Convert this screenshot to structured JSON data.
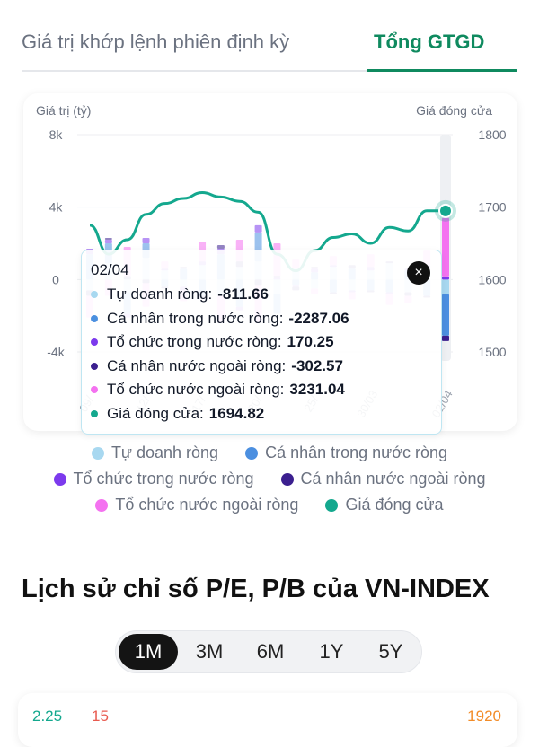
{
  "tabs": {
    "tab1": "Giá trị khớp lệnh phiên định kỳ",
    "tab2": "Tổng GTGD"
  },
  "colors": {
    "tu_doanh": "#a8d8f0",
    "ca_nhan_trong_nuoc": "#4b8fe0",
    "to_chuc_trong_nuoc": "#7c3aed",
    "ca_nhan_nuoc_ngoai": "#3b1f8f",
    "to_chuc_nuoc_ngoai": "#f472f0",
    "gia_dong_cua": "#14a88e"
  },
  "chart_data": {
    "type": "bar",
    "y_left_label": "Giá trị (tỷ)",
    "y_right_label": "Giá đóng cửa",
    "y_left_ticks": [
      "8k",
      "4k",
      "0",
      "-4k"
    ],
    "y_right_ticks": [
      "1800",
      "1700",
      "1600",
      "1500"
    ],
    "ylim_left": [
      -4000,
      8000
    ],
    "ylim_right": [
      1500,
      1800
    ],
    "x_tick_labels": [
      "09/",
      "12/",
      "17/",
      "20/",
      "25/",
      "30/03",
      "02/04"
    ],
    "x_tick_index": [
      0,
      3,
      6,
      9,
      12,
      15,
      19
    ],
    "n_points": 20,
    "series": [
      {
        "name": "Tự doanh ròng",
        "key": "tu_doanh",
        "values": [
          -600,
          900,
          -700,
          1200,
          500,
          -400,
          800,
          -900,
          700,
          1000,
          -800,
          600,
          -500,
          700,
          -600,
          500,
          900,
          -700,
          600,
          -811.66
        ]
      },
      {
        "name": "Cá nhân trong nước ròng",
        "key": "ca_nhan_trong_nuoc",
        "values": [
          1400,
          1100,
          -1200,
          800,
          -400,
          600,
          -900,
          1400,
          -1500,
          1600,
          -1100,
          -300,
          400,
          -700,
          600,
          -600,
          -700,
          500,
          -900,
          -2287.06
        ]
      },
      {
        "name": "Tổ chức trong nước ròng",
        "key": "to_chuc_trong_nuoc",
        "values": [
          300,
          200,
          -200,
          300,
          100,
          -200,
          200,
          300,
          -200,
          400,
          100,
          -100,
          200,
          100,
          -100,
          200,
          -100,
          100,
          200,
          170.25
        ]
      },
      {
        "name": "Cá nhân nước ngoài ròng",
        "key": "ca_nhan_nuoc_ngoai",
        "values": [
          -300,
          100,
          200,
          -200,
          -100,
          100,
          -200,
          200,
          300,
          -300,
          100,
          -200,
          100,
          -100,
          200,
          -100,
          100,
          -200,
          -100,
          -302.57
        ]
      },
      {
        "name": "Tổ chức nước ngoài ròng",
        "key": "to_chuc_nuoc_ngoai",
        "values": [
          -1200,
          -900,
          1600,
          -1300,
          400,
          -600,
          1100,
          -1500,
          1200,
          -2100,
          1800,
          500,
          -300,
          500,
          -400,
          700,
          -600,
          -400,
          800,
          3231.04
        ]
      }
    ],
    "price": {
      "name": "Giá đóng cửa",
      "key": "gia_dong_cua",
      "values": [
        1675,
        1635,
        1655,
        1690,
        1705,
        1712,
        1720,
        1714,
        1708,
        1693,
        1635,
        1612,
        1640,
        1658,
        1663,
        1650,
        1672,
        1667,
        1695,
        1694.82
      ]
    }
  },
  "tooltip": {
    "date": "02/04",
    "rows": [
      {
        "key": "tu_doanh",
        "label": "Tự doanh ròng:",
        "value": "-811.66"
      },
      {
        "key": "ca_nhan_trong_nuoc",
        "label": "Cá nhân trong nước ròng:",
        "value": "-2287.06"
      },
      {
        "key": "to_chuc_trong_nuoc",
        "label": "Tổ chức trong nước ròng:",
        "value": "170.25"
      },
      {
        "key": "ca_nhan_nuoc_ngoai",
        "label": "Cá nhân nước ngoài ròng:",
        "value": "-302.57"
      },
      {
        "key": "to_chuc_nuoc_ngoai",
        "label": "Tổ chức nước ngoài ròng:",
        "value": "3231.04"
      },
      {
        "key": "gia_dong_cua",
        "label": "Giá đóng cửa:",
        "value": "1694.82"
      }
    ],
    "close_symbol": "×"
  },
  "legend": {
    "tu_doanh": "Tự doanh ròng",
    "ca_nhan_trong_nuoc": "Cá nhân trong nước ròng",
    "to_chuc_trong_nuoc": "Tổ chức trong nước ròng",
    "ca_nhan_nuoc_ngoai": "Cá nhân nước ngoài ròng",
    "to_chuc_nuoc_ngoai": "Tổ chức nước ngoài ròng",
    "gia_dong_cua": "Giá đóng cửa"
  },
  "pe_section": {
    "title": "Lịch sử chỉ số P/E, P/B của VN-INDEX",
    "periods": [
      "1M",
      "3M",
      "6M",
      "1Y",
      "5Y"
    ],
    "active_period": "1M",
    "partial_left_1": "2.25",
    "partial_left_2": "15",
    "partial_right": "1920"
  }
}
